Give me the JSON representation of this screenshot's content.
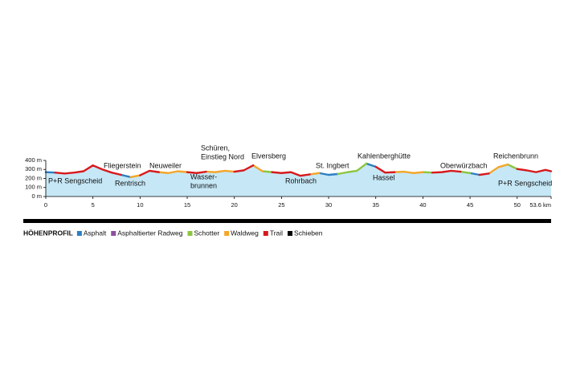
{
  "chart_data": {
    "type": "elevation-profile",
    "x": [
      0,
      1,
      2,
      3,
      4,
      5,
      6,
      7,
      8,
      9,
      10,
      11,
      12,
      13,
      14,
      15,
      16,
      17,
      18,
      19,
      20,
      21,
      22,
      23,
      24,
      25,
      26,
      27,
      28,
      29,
      30,
      31,
      32,
      33,
      34,
      35,
      36,
      37,
      38,
      39,
      40,
      41,
      42,
      43,
      44,
      45,
      46,
      47,
      48,
      49,
      50,
      51,
      52,
      53,
      53.6
    ],
    "values": [
      270,
      265,
      255,
      265,
      280,
      345,
      300,
      265,
      240,
      215,
      235,
      285,
      270,
      260,
      280,
      270,
      260,
      275,
      270,
      285,
      275,
      290,
      345,
      280,
      270,
      260,
      270,
      230,
      245,
      260,
      240,
      250,
      270,
      285,
      365,
      330,
      265,
      270,
      275,
      260,
      270,
      265,
      270,
      285,
      275,
      260,
      240,
      255,
      325,
      355,
      305,
      290,
      270,
      295,
      280
    ],
    "area_color": "#c6e7f6",
    "series": [
      {
        "name": "Asphalt",
        "color": "#2b7fc3",
        "values": [
          270,
          265,
          null,
          null,
          null,
          null,
          null,
          null,
          240,
          215,
          null,
          null,
          null,
          null,
          null,
          null,
          null,
          null,
          null,
          null,
          null,
          null,
          null,
          null,
          null,
          null,
          null,
          null,
          null,
          260,
          240,
          250,
          null,
          null,
          365,
          330,
          null,
          null,
          null,
          null,
          null,
          null,
          null,
          null,
          null,
          260,
          240,
          null,
          null,
          null,
          null,
          null,
          null,
          null,
          null
        ]
      },
      {
        "name": "Asphaltierter Radweg",
        "color": "#8c4fa1",
        "values": [
          null,
          null,
          null,
          null,
          null,
          null,
          null,
          null,
          null,
          null,
          null,
          null,
          null,
          null,
          null,
          null,
          null,
          null,
          null,
          null,
          null,
          null,
          null,
          null,
          null,
          null,
          null,
          null,
          null,
          null,
          null,
          null,
          null,
          null,
          null,
          null,
          null,
          null,
          null,
          null,
          null,
          null,
          null,
          null,
          null,
          null,
          null,
          null,
          null,
          null,
          null,
          null,
          null,
          null,
          null
        ]
      },
      {
        "name": "Schotter",
        "color": "#8cc63f",
        "values": [
          null,
          null,
          null,
          null,
          null,
          null,
          null,
          null,
          null,
          null,
          null,
          null,
          null,
          null,
          null,
          null,
          null,
          null,
          null,
          null,
          null,
          null,
          null,
          280,
          270,
          null,
          null,
          null,
          null,
          null,
          null,
          250,
          270,
          285,
          365,
          null,
          null,
          null,
          null,
          null,
          270,
          265,
          null,
          null,
          275,
          260,
          null,
          null,
          null,
          355,
          305,
          null,
          null,
          null,
          null
        ]
      },
      {
        "name": "Waldweg",
        "color": "#f4a62a",
        "values": [
          null,
          null,
          null,
          null,
          null,
          null,
          null,
          null,
          null,
          215,
          235,
          null,
          270,
          260,
          280,
          270,
          null,
          275,
          270,
          285,
          275,
          null,
          345,
          280,
          null,
          null,
          null,
          null,
          245,
          260,
          null,
          null,
          null,
          null,
          null,
          null,
          null,
          270,
          275,
          260,
          270,
          null,
          null,
          null,
          null,
          null,
          null,
          255,
          325,
          355,
          null,
          null,
          null,
          null,
          null
        ]
      },
      {
        "name": "Trail",
        "color": "#d7191c",
        "values": [
          null,
          265,
          255,
          265,
          280,
          345,
          300,
          265,
          240,
          null,
          235,
          285,
          270,
          null,
          null,
          270,
          260,
          275,
          null,
          null,
          275,
          290,
          345,
          null,
          270,
          260,
          270,
          230,
          245,
          null,
          null,
          null,
          null,
          null,
          null,
          330,
          265,
          270,
          null,
          null,
          null,
          265,
          270,
          285,
          275,
          null,
          240,
          255,
          null,
          null,
          305,
          290,
          270,
          295,
          280
        ]
      },
      {
        "name": "Schieben",
        "color": "#000000",
        "values": [
          null,
          null,
          null,
          null,
          null,
          null,
          null,
          null,
          null,
          null,
          null,
          null,
          null,
          null,
          null,
          null,
          null,
          null,
          null,
          null,
          null,
          null,
          null,
          null,
          null,
          null,
          null,
          null,
          null,
          null,
          null,
          null,
          null,
          null,
          null,
          null,
          null,
          null,
          null,
          null,
          null,
          null,
          null,
          null,
          null,
          null,
          null,
          null,
          null,
          null,
          null,
          null,
          null,
          null,
          null
        ]
      }
    ],
    "xlim": [
      0,
      53.6
    ],
    "xticks": [
      0,
      5,
      10,
      15,
      20,
      25,
      30,
      35,
      40,
      45,
      50,
      {
        "value": 53.6,
        "label": "53.6 km"
      }
    ],
    "ylim": [
      0,
      400
    ],
    "yticks": [
      {
        "value": 0,
        "label": "0 m"
      },
      {
        "value": 100,
        "label": "100 m"
      },
      {
        "value": 200,
        "label": "200 m"
      },
      {
        "value": 300,
        "label": "300 m"
      },
      {
        "value": 400,
        "label": "400 m"
      }
    ],
    "legend_title": "HÖHENPROFIL",
    "annotations": [
      "P+R Sengscheid",
      "Fliegerstein",
      "Rentrisch",
      "Neuweiler",
      [
        "Wasser-",
        "brunnen"
      ],
      [
        "Schüren,",
        "Einstieg Nord"
      ],
      "Elversberg",
      "Rohrbach",
      "St. Ingbert",
      "Kahlenberghütte",
      "Hassel",
      "Oberwürzbach",
      "Reichenbrunn",
      "P+R Sengscheid"
    ]
  }
}
